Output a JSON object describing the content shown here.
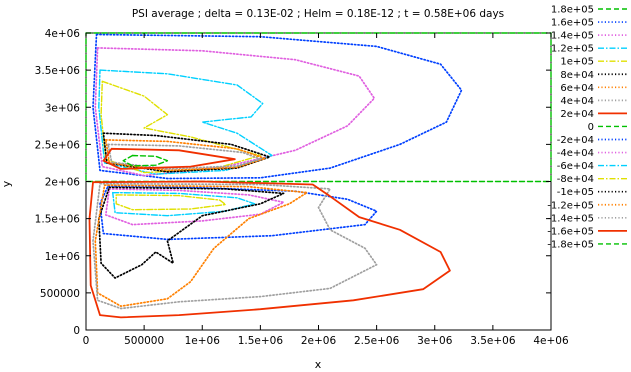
{
  "chart_data": {
    "type": "line",
    "title": "PSI average ; delta =  0.13E-02  ; Helm =  0.18E-12  ; t =  0.58E+06  days",
    "xlabel": "x",
    "ylabel": "y",
    "xlim": [
      0,
      4000000
    ],
    "ylim": [
      0,
      4000000
    ],
    "x_ticks": [
      {
        "value": 0,
        "label": "0"
      },
      {
        "value": 500000,
        "label": "500000"
      },
      {
        "value": 1000000,
        "label": "1e+06"
      },
      {
        "value": 1500000,
        "label": "1.5e+06"
      },
      {
        "value": 2000000,
        "label": "2e+06"
      },
      {
        "value": 2500000,
        "label": "2.5e+06"
      },
      {
        "value": 3000000,
        "label": "3e+06"
      },
      {
        "value": 3500000,
        "label": "3.5e+06"
      },
      {
        "value": 4000000,
        "label": "4e+06"
      }
    ],
    "y_ticks": [
      {
        "value": 0,
        "label": "0"
      },
      {
        "value": 500000,
        "label": "500000"
      },
      {
        "value": 1000000,
        "label": "1e+06"
      },
      {
        "value": 1500000,
        "label": "1.5e+06"
      },
      {
        "value": 2000000,
        "label": "2e+06"
      },
      {
        "value": 2500000,
        "label": "2.5e+06"
      },
      {
        "value": 3000000,
        "label": "3e+06"
      },
      {
        "value": 3500000,
        "label": "3.5e+06"
      },
      {
        "value": 4000000,
        "label": "4e+06"
      }
    ],
    "grid": false,
    "legend_position": "right",
    "series": [
      {
        "name": "1.8e+05",
        "color": "#00c000",
        "dash": "dashed",
        "points": [
          [
            0,
            4000000
          ],
          [
            4000000,
            4000000
          ],
          [
            4000000,
            2000000
          ],
          [
            0,
            2000000
          ],
          [
            0,
            4000000
          ]
        ]
      },
      {
        "name": "1.6e+05",
        "color": "#0040ff",
        "dash": "dotted",
        "points": [
          [
            90000,
            3980000
          ],
          [
            1500000,
            3950000
          ],
          [
            2500000,
            3820000
          ],
          [
            3050000,
            3580000
          ],
          [
            3230000,
            3230000
          ],
          [
            3100000,
            2800000
          ],
          [
            2700000,
            2500000
          ],
          [
            2100000,
            2180000
          ],
          [
            1500000,
            2050000
          ],
          [
            700000,
            2040000
          ],
          [
            120000,
            2150000
          ],
          [
            60000,
            3000000
          ],
          [
            90000,
            3980000
          ]
        ]
      },
      {
        "name": "1.4e+05",
        "color": "#e060e0",
        "dash": "dotted",
        "points": [
          [
            100000,
            3800000
          ],
          [
            1000000,
            3760000
          ],
          [
            1800000,
            3640000
          ],
          [
            2350000,
            3420000
          ],
          [
            2480000,
            3120000
          ],
          [
            2250000,
            2750000
          ],
          [
            1800000,
            2420000
          ],
          [
            1200000,
            2200000
          ],
          [
            500000,
            2080000
          ],
          [
            140000,
            2200000
          ],
          [
            80000,
            3000000
          ],
          [
            100000,
            3800000
          ]
        ]
      },
      {
        "name": "1.2e+05",
        "color": "#00d0ff",
        "dash": "dashdot",
        "points": [
          [
            120000,
            3500000
          ],
          [
            700000,
            3450000
          ],
          [
            1300000,
            3300000
          ],
          [
            1520000,
            3050000
          ],
          [
            1420000,
            2870000
          ],
          [
            1000000,
            2800000
          ],
          [
            1300000,
            2650000
          ],
          [
            1600000,
            2350000
          ],
          [
            1200000,
            2150000
          ],
          [
            600000,
            2100000
          ],
          [
            160000,
            2250000
          ],
          [
            110000,
            3000000
          ],
          [
            120000,
            3500000
          ]
        ]
      },
      {
        "name": "1e+05",
        "color": "#e0e000",
        "dash": "dashdot",
        "points": [
          [
            140000,
            3350000
          ],
          [
            500000,
            3150000
          ],
          [
            700000,
            2900000
          ],
          [
            500000,
            2720000
          ],
          [
            900000,
            2600000
          ],
          [
            1500000,
            2350000
          ],
          [
            1100000,
            2170000
          ],
          [
            500000,
            2120000
          ],
          [
            170000,
            2300000
          ],
          [
            130000,
            2900000
          ],
          [
            140000,
            3350000
          ]
        ]
      },
      {
        "name": "8e+04",
        "color": "#000000",
        "dash": "dotted",
        "points": [
          [
            150000,
            2650000
          ],
          [
            600000,
            2620000
          ],
          [
            1250000,
            2500000
          ],
          [
            1580000,
            2330000
          ],
          [
            1300000,
            2180000
          ],
          [
            700000,
            2130000
          ],
          [
            180000,
            2250000
          ],
          [
            150000,
            2650000
          ]
        ]
      },
      {
        "name": "6e+04",
        "color": "#ff8000",
        "dash": "dotted",
        "points": [
          [
            170000,
            2560000
          ],
          [
            700000,
            2540000
          ],
          [
            1300000,
            2440000
          ],
          [
            1540000,
            2310000
          ],
          [
            1300000,
            2190000
          ],
          [
            700000,
            2150000
          ],
          [
            200000,
            2250000
          ],
          [
            170000,
            2560000
          ]
        ]
      },
      {
        "name": "4e+04",
        "color": "#a0a0a0",
        "dash": "dotted",
        "points": [
          [
            190000,
            2500000
          ],
          [
            800000,
            2480000
          ],
          [
            1350000,
            2390000
          ],
          [
            1500000,
            2300000
          ],
          [
            1300000,
            2210000
          ],
          [
            700000,
            2170000
          ],
          [
            220000,
            2260000
          ],
          [
            190000,
            2500000
          ]
        ]
      },
      {
        "name": "2e+04",
        "color": "#f03000",
        "dash": "solid",
        "points": [
          [
            220000,
            2440000
          ],
          [
            800000,
            2420000
          ],
          [
            1280000,
            2300000
          ],
          [
            900000,
            2200000
          ],
          [
            300000,
            2170000
          ],
          [
            150000,
            2280000
          ],
          [
            220000,
            2440000
          ]
        ]
      },
      {
        "name": "0",
        "color": "#00c000",
        "dash": "dashed",
        "points": [
          [
            400000,
            2350000
          ],
          [
            600000,
            2340000
          ],
          [
            700000,
            2280000
          ],
          [
            600000,
            2220000
          ],
          [
            400000,
            2210000
          ],
          [
            320000,
            2280000
          ],
          [
            400000,
            2350000
          ]
        ]
      },
      {
        "name": "-2e+04",
        "color": "#0040ff",
        "dash": "dotted",
        "points": [
          [
            190000,
            1940000
          ],
          [
            900000,
            1920000
          ],
          [
            1800000,
            1870000
          ],
          [
            2250000,
            1760000
          ],
          [
            2500000,
            1600000
          ],
          [
            2400000,
            1420000
          ],
          [
            1600000,
            1270000
          ],
          [
            700000,
            1220000
          ],
          [
            150000,
            1300000
          ],
          [
            120000,
            1700000
          ],
          [
            190000,
            1940000
          ]
        ]
      },
      {
        "name": "-4e+04",
        "color": "#e060e0",
        "dash": "dotted",
        "points": [
          [
            200000,
            1900000
          ],
          [
            800000,
            1880000
          ],
          [
            1400000,
            1820000
          ],
          [
            1700000,
            1720000
          ],
          [
            1500000,
            1560000
          ],
          [
            1000000,
            1470000
          ],
          [
            400000,
            1420000
          ],
          [
            170000,
            1550000
          ],
          [
            200000,
            1900000
          ]
        ]
      },
      {
        "name": "-6e+04",
        "color": "#00d0ff",
        "dash": "dashdot",
        "points": [
          [
            230000,
            1850000
          ],
          [
            800000,
            1840000
          ],
          [
            1300000,
            1780000
          ],
          [
            1450000,
            1700000
          ],
          [
            1200000,
            1600000
          ],
          [
            700000,
            1540000
          ],
          [
            250000,
            1580000
          ],
          [
            230000,
            1850000
          ]
        ]
      },
      {
        "name": "-8e+04",
        "color": "#e0e000",
        "dash": "dashdot",
        "points": [
          [
            260000,
            1820000
          ],
          [
            800000,
            1810000
          ],
          [
            1150000,
            1750000
          ],
          [
            1200000,
            1690000
          ],
          [
            900000,
            1630000
          ],
          [
            400000,
            1620000
          ],
          [
            260000,
            1700000
          ],
          [
            260000,
            1820000
          ]
        ]
      },
      {
        "name": "-1e+05",
        "color": "#000000",
        "dash": "dotted",
        "points": [
          [
            200000,
            1920000
          ],
          [
            1200000,
            1900000
          ],
          [
            1700000,
            1840000
          ],
          [
            1500000,
            1700000
          ],
          [
            1000000,
            1540000
          ],
          [
            700000,
            1200000
          ],
          [
            750000,
            900000
          ],
          [
            600000,
            1050000
          ],
          [
            480000,
            880000
          ],
          [
            250000,
            700000
          ],
          [
            130000,
            900000
          ],
          [
            110000,
            1500000
          ],
          [
            200000,
            1920000
          ]
        ]
      },
      {
        "name": "-1.2e+05",
        "color": "#ff8000",
        "dash": "dotted",
        "points": [
          [
            160000,
            1950000
          ],
          [
            1400000,
            1930000
          ],
          [
            1900000,
            1850000
          ],
          [
            1750000,
            1700000
          ],
          [
            1400000,
            1500000
          ],
          [
            1100000,
            1100000
          ],
          [
            900000,
            650000
          ],
          [
            700000,
            420000
          ],
          [
            300000,
            320000
          ],
          [
            100000,
            500000
          ],
          [
            80000,
            1200000
          ],
          [
            160000,
            1950000
          ]
        ]
      },
      {
        "name": "-1.4e+05",
        "color": "#a0a0a0",
        "dash": "dotted",
        "points": [
          [
            120000,
            1970000
          ],
          [
            1500000,
            1960000
          ],
          [
            2100000,
            1900000
          ],
          [
            2000000,
            1650000
          ],
          [
            2100000,
            1350000
          ],
          [
            2400000,
            1100000
          ],
          [
            2500000,
            880000
          ],
          [
            2100000,
            560000
          ],
          [
            1500000,
            450000
          ],
          [
            800000,
            380000
          ],
          [
            300000,
            290000
          ],
          [
            100000,
            400000
          ],
          [
            60000,
            1200000
          ],
          [
            120000,
            1970000
          ]
        ]
      },
      {
        "name": "-1.6e+05",
        "color": "#f03000",
        "dash": "solid",
        "points": [
          [
            60000,
            1990000
          ],
          [
            1000000,
            2000000
          ],
          [
            1950000,
            1960000
          ],
          [
            2100000,
            1800000
          ],
          [
            2350000,
            1520000
          ],
          [
            2700000,
            1350000
          ],
          [
            3050000,
            1050000
          ],
          [
            3130000,
            800000
          ],
          [
            2900000,
            550000
          ],
          [
            2300000,
            400000
          ],
          [
            1500000,
            280000
          ],
          [
            800000,
            200000
          ],
          [
            300000,
            170000
          ],
          [
            120000,
            200000
          ],
          [
            40000,
            600000
          ],
          [
            30000,
            1500000
          ],
          [
            60000,
            1990000
          ]
        ]
      },
      {
        "name": "-1.8e+05",
        "color": "#00c000",
        "dash": "dashed",
        "points": []
      }
    ]
  }
}
